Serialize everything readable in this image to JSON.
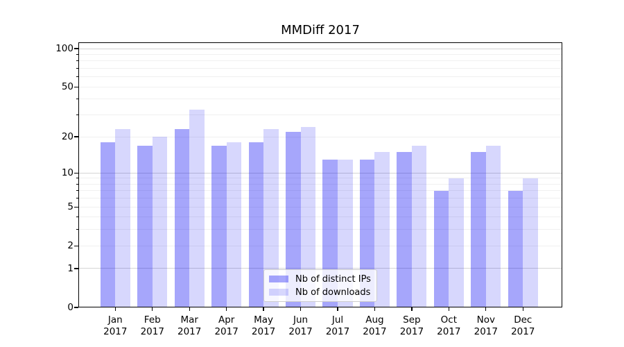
{
  "title": "MMDiff 2017",
  "chart_data": {
    "type": "bar",
    "title": "MMDiff 2017",
    "categories": [
      "Jan 2017",
      "Feb 2017",
      "Mar 2017",
      "Apr 2017",
      "May 2017",
      "Jun 2017",
      "Jul 2017",
      "Aug 2017",
      "Sep 2017",
      "Oct 2017",
      "Nov 2017",
      "Dec 2017"
    ],
    "series": [
      {
        "name": "Nb of distinct IPs",
        "values": [
          18,
          17,
          23,
          17,
          18,
          22,
          13,
          13,
          15,
          7,
          15,
          7
        ],
        "color_hex": "#a6a6fa",
        "css_color": "rgba(0,0,244,0.35)"
      },
      {
        "name": "Nb of downloads",
        "values": [
          23,
          20,
          33,
          18,
          23,
          24,
          13,
          15,
          17,
          9,
          17,
          9
        ],
        "color_hex": "#d8d8fc",
        "css_color": "rgba(0,0,244,0.155)"
      }
    ],
    "xlabel": "",
    "ylabel": "",
    "yscale": "log-like (position proportional to log(1+v))",
    "ylim": [
      0,
      112
    ],
    "yticks_labeled": [
      100,
      50,
      20,
      10,
      5,
      2,
      1,
      0
    ],
    "yticks_major_grid": [
      1,
      10,
      100
    ],
    "yticks_minor_grid": [
      2,
      3,
      4,
      5,
      6,
      7,
      8,
      9,
      20,
      30,
      40,
      50,
      60,
      70,
      80,
      90
    ],
    "grid": true,
    "legend_entries": [
      "Nb of distinct IPs",
      "Nb of downloads"
    ],
    "legend_position": "lower center inside",
    "colors": {
      "major_grid": "#d4d4d4",
      "minor_grid": "#f0f0f0",
      "axis": "#000000",
      "legend_border": "#cccccc"
    }
  }
}
